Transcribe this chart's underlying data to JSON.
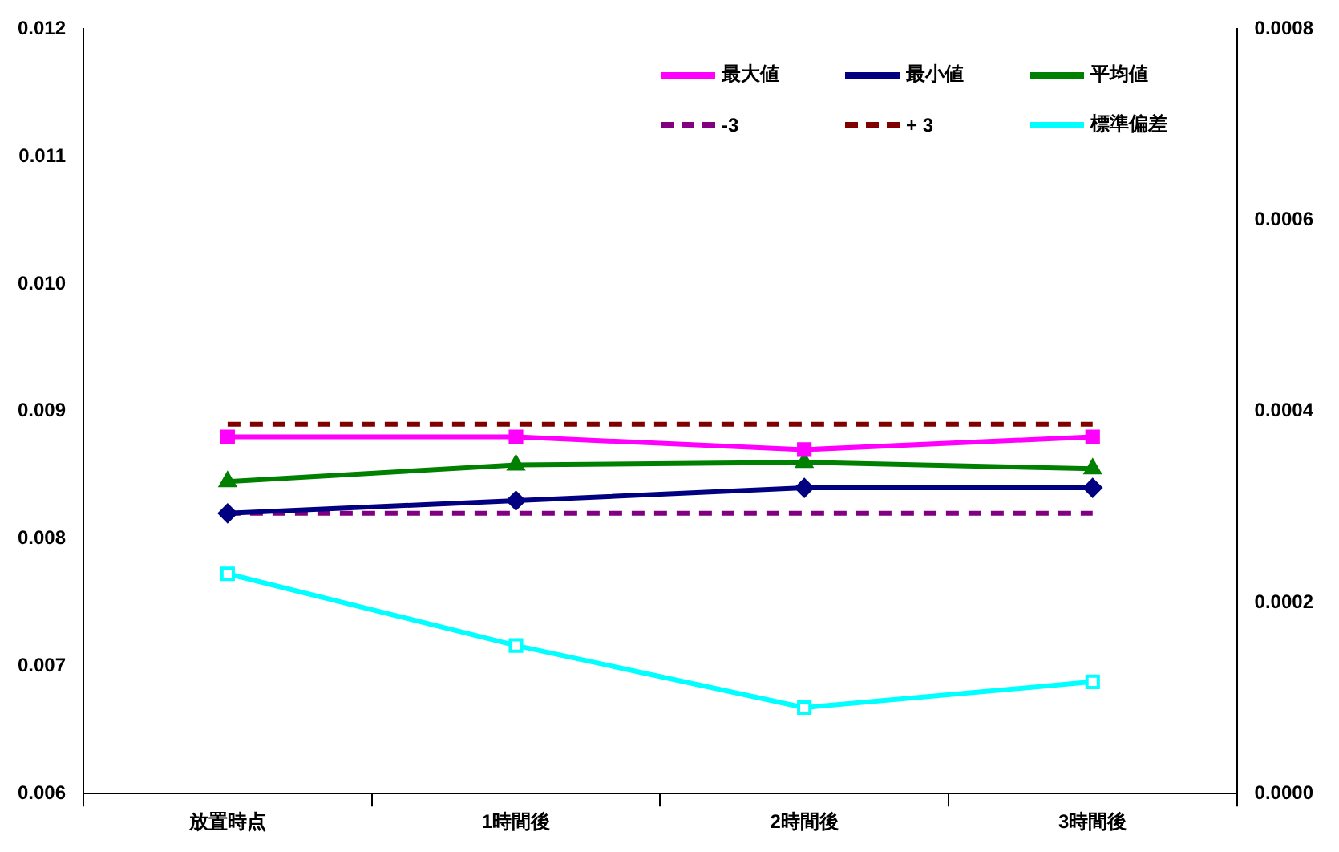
{
  "chart_data": {
    "type": "line",
    "categories": [
      "放置時点",
      "1時間後",
      "2時間後",
      "3時間後"
    ],
    "series": [
      {
        "name": "最大値",
        "color": "#ff00ff",
        "marker": "square",
        "values": [
          0.0088,
          0.0088,
          0.0087,
          0.0088
        ]
      },
      {
        "name": "最小値",
        "color": "#000080",
        "marker": "diamond",
        "values": [
          0.0082,
          0.0083,
          0.0084,
          0.0084
        ]
      },
      {
        "name": "平均値",
        "color": "#008000",
        "marker": "triangle",
        "values": [
          0.00845,
          0.00858,
          0.0086,
          0.00855
        ]
      },
      {
        "name": "-3",
        "color": "#800080",
        "marker": "none",
        "line_style": "dashed",
        "values": [
          0.0082,
          0.0082,
          0.0082,
          0.0082
        ]
      },
      {
        "name": "+ 3",
        "color": "#800000",
        "marker": "none",
        "line_style": "dashed",
        "values": [
          0.0089,
          0.0089,
          0.0089,
          0.0089
        ]
      },
      {
        "name": "標準偏差",
        "color": "#00ffff",
        "marker": "square",
        "axis": "y2",
        "values": [
          0.00023,
          0.000155,
          9e-05,
          0.000117
        ]
      }
    ],
    "ylim": [
      0.006,
      0.012
    ],
    "yticks": [
      0.006,
      0.007,
      0.008,
      0.009,
      {
        "value": 0.01,
        "label": "0.010"
      },
      0.011,
      0.012
    ],
    "y2lim": [
      0,
      0.0008
    ],
    "y2ticks": [
      {
        "value": 0,
        "label": "0.0000"
      },
      0.0002,
      0.0004,
      0.0006,
      0.0008
    ],
    "grid": false,
    "legend": "top right"
  }
}
